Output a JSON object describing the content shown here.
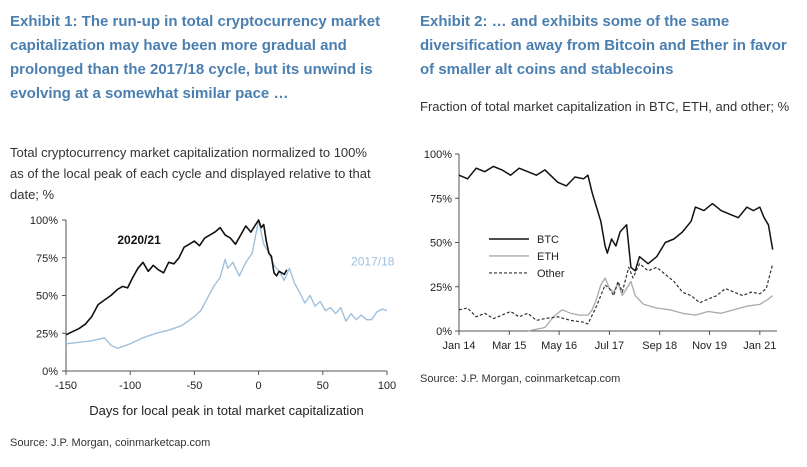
{
  "exhibits": [
    {
      "title": "Exhibit 1: The run-up in total cryptocurrency market capitalization may have been more gradual and prolonged than the 2017/18 cycle, but its unwind is evolving at a somewhat similar pace …",
      "subtitle": "Total cryptocurrency market capitalization normalized to 100% as of the local peak of each cycle and displayed relative to that date; %",
      "source": "Source: J.P. Morgan, coinmarketcap.com"
    },
    {
      "title": "Exhibit 2: … and exhibits some of the same diversification away from Bitcoin and Ether in favor of smaller alt coins and stablecoins",
      "subtitle": "Fraction of total market capitalization in BTC, ETH, and other; %",
      "source": "Source: J.P. Morgan, coinmarketcap.com"
    }
  ],
  "colors": {
    "title": "#4a7fb0",
    "series_dark": "#111111",
    "series_light": "#9fc0dc",
    "eth_gray": "#aaaaaa"
  },
  "chart_data": [
    {
      "type": "line",
      "xlabel": "Days for local peak in total market capitalization",
      "ylabel": "",
      "xlim": [
        -150,
        100
      ],
      "ylim": [
        0,
        100
      ],
      "x_ticks": [
        -150,
        -100,
        -50,
        0,
        50,
        100
      ],
      "y_ticks": [
        0,
        25,
        50,
        75,
        100
      ],
      "y_tick_labels": [
        "0%",
        "25%",
        "50%",
        "75%",
        "100%"
      ],
      "grid": false,
      "series": [
        {
          "name": "2020/21",
          "label_at": [
            -110,
            84
          ],
          "points": [
            [
              -150,
              24
            ],
            [
              -145,
              26
            ],
            [
              -140,
              28
            ],
            [
              -135,
              31
            ],
            [
              -130,
              36
            ],
            [
              -125,
              44
            ],
            [
              -120,
              47
            ],
            [
              -115,
              50
            ],
            [
              -110,
              54
            ],
            [
              -106,
              56
            ],
            [
              -102,
              55
            ],
            [
              -98,
              62
            ],
            [
              -94,
              68
            ],
            [
              -90,
              72
            ],
            [
              -86,
              66
            ],
            [
              -82,
              70
            ],
            [
              -78,
              67
            ],
            [
              -74,
              65
            ],
            [
              -70,
              72
            ],
            [
              -66,
              71
            ],
            [
              -62,
              75
            ],
            [
              -58,
              82
            ],
            [
              -54,
              84
            ],
            [
              -50,
              86
            ],
            [
              -46,
              83
            ],
            [
              -42,
              88
            ],
            [
              -38,
              90
            ],
            [
              -34,
              92
            ],
            [
              -30,
              95
            ],
            [
              -26,
              90
            ],
            [
              -22,
              88
            ],
            [
              -18,
              84
            ],
            [
              -14,
              90
            ],
            [
              -10,
              96
            ],
            [
              -6,
              92
            ],
            [
              -3,
              96
            ],
            [
              0,
              100
            ],
            [
              2,
              95
            ],
            [
              4,
              97
            ],
            [
              6,
              86
            ],
            [
              8,
              78
            ],
            [
              10,
              76
            ],
            [
              12,
              65
            ],
            [
              14,
              63
            ],
            [
              16,
              66
            ],
            [
              18,
              65
            ],
            [
              20,
              64
            ],
            [
              22,
              67
            ]
          ]
        },
        {
          "name": "2017/18",
          "label_at": [
            72,
            70
          ],
          "points": [
            [
              -150,
              18
            ],
            [
              -140,
              19
            ],
            [
              -130,
              20
            ],
            [
              -120,
              22
            ],
            [
              -115,
              17
            ],
            [
              -110,
              15
            ],
            [
              -100,
              18
            ],
            [
              -90,
              22
            ],
            [
              -80,
              25
            ],
            [
              -70,
              27
            ],
            [
              -60,
              30
            ],
            [
              -50,
              36
            ],
            [
              -45,
              40
            ],
            [
              -40,
              48
            ],
            [
              -35,
              56
            ],
            [
              -30,
              62
            ],
            [
              -26,
              74
            ],
            [
              -24,
              68
            ],
            [
              -20,
              72
            ],
            [
              -15,
              63
            ],
            [
              -10,
              72
            ],
            [
              -5,
              78
            ],
            [
              0,
              100
            ],
            [
              4,
              84
            ],
            [
              8,
              78
            ],
            [
              12,
              70
            ],
            [
              16,
              66
            ],
            [
              20,
              60
            ],
            [
              24,
              68
            ],
            [
              28,
              58
            ],
            [
              32,
              52
            ],
            [
              36,
              45
            ],
            [
              40,
              50
            ],
            [
              44,
              43
            ],
            [
              48,
              46
            ],
            [
              52,
              40
            ],
            [
              56,
              42
            ],
            [
              60,
              38
            ],
            [
              64,
              42
            ],
            [
              68,
              33
            ],
            [
              72,
              38
            ],
            [
              76,
              34
            ],
            [
              80,
              37
            ],
            [
              84,
              34
            ],
            [
              88,
              34
            ],
            [
              92,
              39
            ],
            [
              96,
              41
            ],
            [
              100,
              40
            ]
          ]
        }
      ]
    },
    {
      "type": "line",
      "xlabel": "",
      "ylabel": "",
      "ylim": [
        0,
        100
      ],
      "x_ticks": [
        "Jan 14",
        "Mar 15",
        "May 16",
        "Jul 17",
        "Sep 18",
        "Nov 19",
        "Jan 21"
      ],
      "x_tick_values": [
        2014.0,
        2015.17,
        2016.33,
        2017.5,
        2018.67,
        2019.83,
        2021.0
      ],
      "xlim": [
        2014.0,
        2021.4
      ],
      "y_ticks": [
        0,
        25,
        50,
        75,
        100
      ],
      "y_tick_labels": [
        "0%",
        "25%",
        "50%",
        "75%",
        "100%"
      ],
      "legend_placement": "center-left",
      "grid": false,
      "series": [
        {
          "name": "BTC",
          "points": [
            [
              2014.0,
              88
            ],
            [
              2014.2,
              86
            ],
            [
              2014.4,
              92
            ],
            [
              2014.6,
              90
            ],
            [
              2014.8,
              93
            ],
            [
              2015.0,
              91
            ],
            [
              2015.2,
              88
            ],
            [
              2015.4,
              92
            ],
            [
              2015.6,
              90
            ],
            [
              2015.8,
              88
            ],
            [
              2016.0,
              91
            ],
            [
              2016.3,
              84
            ],
            [
              2016.5,
              82
            ],
            [
              2016.7,
              87
            ],
            [
              2016.9,
              86
            ],
            [
              2017.0,
              88
            ],
            [
              2017.1,
              78
            ],
            [
              2017.2,
              70
            ],
            [
              2017.3,
              62
            ],
            [
              2017.4,
              48
            ],
            [
              2017.45,
              44
            ],
            [
              2017.55,
              52
            ],
            [
              2017.65,
              48
            ],
            [
              2017.75,
              56
            ],
            [
              2017.9,
              60
            ],
            [
              2018.0,
              36
            ],
            [
              2018.1,
              34
            ],
            [
              2018.2,
              42
            ],
            [
              2018.4,
              38
            ],
            [
              2018.6,
              42
            ],
            [
              2018.8,
              50
            ],
            [
              2019.0,
              52
            ],
            [
              2019.2,
              56
            ],
            [
              2019.4,
              62
            ],
            [
              2019.5,
              70
            ],
            [
              2019.7,
              68
            ],
            [
              2019.9,
              72
            ],
            [
              2020.1,
              68
            ],
            [
              2020.3,
              66
            ],
            [
              2020.5,
              64
            ],
            [
              2020.7,
              70
            ],
            [
              2020.85,
              68
            ],
            [
              2021.0,
              70
            ],
            [
              2021.1,
              64
            ],
            [
              2021.2,
              60
            ],
            [
              2021.3,
              46
            ]
          ]
        },
        {
          "name": "ETH",
          "points": [
            [
              2015.6,
              0
            ],
            [
              2015.8,
              1
            ],
            [
              2016.0,
              2
            ],
            [
              2016.2,
              8
            ],
            [
              2016.4,
              12
            ],
            [
              2016.6,
              10
            ],
            [
              2016.8,
              9
            ],
            [
              2017.0,
              9
            ],
            [
              2017.1,
              12
            ],
            [
              2017.2,
              18
            ],
            [
              2017.3,
              26
            ],
            [
              2017.4,
              30
            ],
            [
              2017.5,
              24
            ],
            [
              2017.6,
              22
            ],
            [
              2017.7,
              27
            ],
            [
              2017.8,
              20
            ],
            [
              2017.9,
              24
            ],
            [
              2018.0,
              28
            ],
            [
              2018.1,
              20
            ],
            [
              2018.3,
              15
            ],
            [
              2018.6,
              13
            ],
            [
              2018.9,
              12
            ],
            [
              2019.2,
              10
            ],
            [
              2019.5,
              9
            ],
            [
              2019.8,
              11
            ],
            [
              2020.1,
              10
            ],
            [
              2020.4,
              12
            ],
            [
              2020.7,
              14
            ],
            [
              2021.0,
              15
            ],
            [
              2021.2,
              18
            ],
            [
              2021.3,
              20
            ]
          ]
        },
        {
          "name": "Other",
          "points": [
            [
              2014.0,
              12
            ],
            [
              2014.2,
              13
            ],
            [
              2014.4,
              8
            ],
            [
              2014.6,
              10
            ],
            [
              2014.8,
              7
            ],
            [
              2015.0,
              9
            ],
            [
              2015.2,
              11
            ],
            [
              2015.4,
              8
            ],
            [
              2015.6,
              10
            ],
            [
              2015.8,
              6
            ],
            [
              2016.0,
              7
            ],
            [
              2016.3,
              8
            ],
            [
              2016.6,
              6
            ],
            [
              2016.9,
              5
            ],
            [
              2017.0,
              4
            ],
            [
              2017.1,
              9
            ],
            [
              2017.2,
              14
            ],
            [
              2017.3,
              20
            ],
            [
              2017.4,
              26
            ],
            [
              2017.5,
              24
            ],
            [
              2017.6,
              20
            ],
            [
              2017.7,
              28
            ],
            [
              2017.8,
              22
            ],
            [
              2017.95,
              36
            ],
            [
              2018.05,
              30
            ],
            [
              2018.2,
              38
            ],
            [
              2018.4,
              34
            ],
            [
              2018.6,
              36
            ],
            [
              2018.8,
              32
            ],
            [
              2019.0,
              28
            ],
            [
              2019.2,
              22
            ],
            [
              2019.4,
              20
            ],
            [
              2019.6,
              16
            ],
            [
              2019.8,
              18
            ],
            [
              2020.0,
              20
            ],
            [
              2020.2,
              24
            ],
            [
              2020.4,
              22
            ],
            [
              2020.6,
              20
            ],
            [
              2020.8,
              22
            ],
            [
              2021.0,
              21
            ],
            [
              2021.15,
              24
            ],
            [
              2021.3,
              38
            ]
          ]
        }
      ]
    }
  ]
}
